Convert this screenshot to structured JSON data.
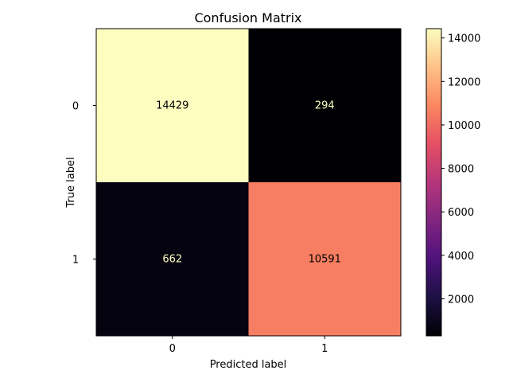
{
  "chart_data": {
    "type": "heatmap",
    "title": "Confusion Matrix",
    "xlabel": "Predicted label",
    "ylabel": "True label",
    "x_categories": [
      "0",
      "1"
    ],
    "y_categories": [
      "0",
      "1"
    ],
    "values": [
      [
        14429,
        294
      ],
      [
        662,
        10591
      ]
    ],
    "colormap": "magma",
    "colorbar": {
      "range": [
        294,
        14429
      ],
      "ticks": [
        2000,
        4000,
        6000,
        8000,
        10000,
        12000,
        14000
      ]
    },
    "cell_text_colors": {
      "on_dark": "#fcfdbf",
      "on_light": "#000000"
    }
  }
}
